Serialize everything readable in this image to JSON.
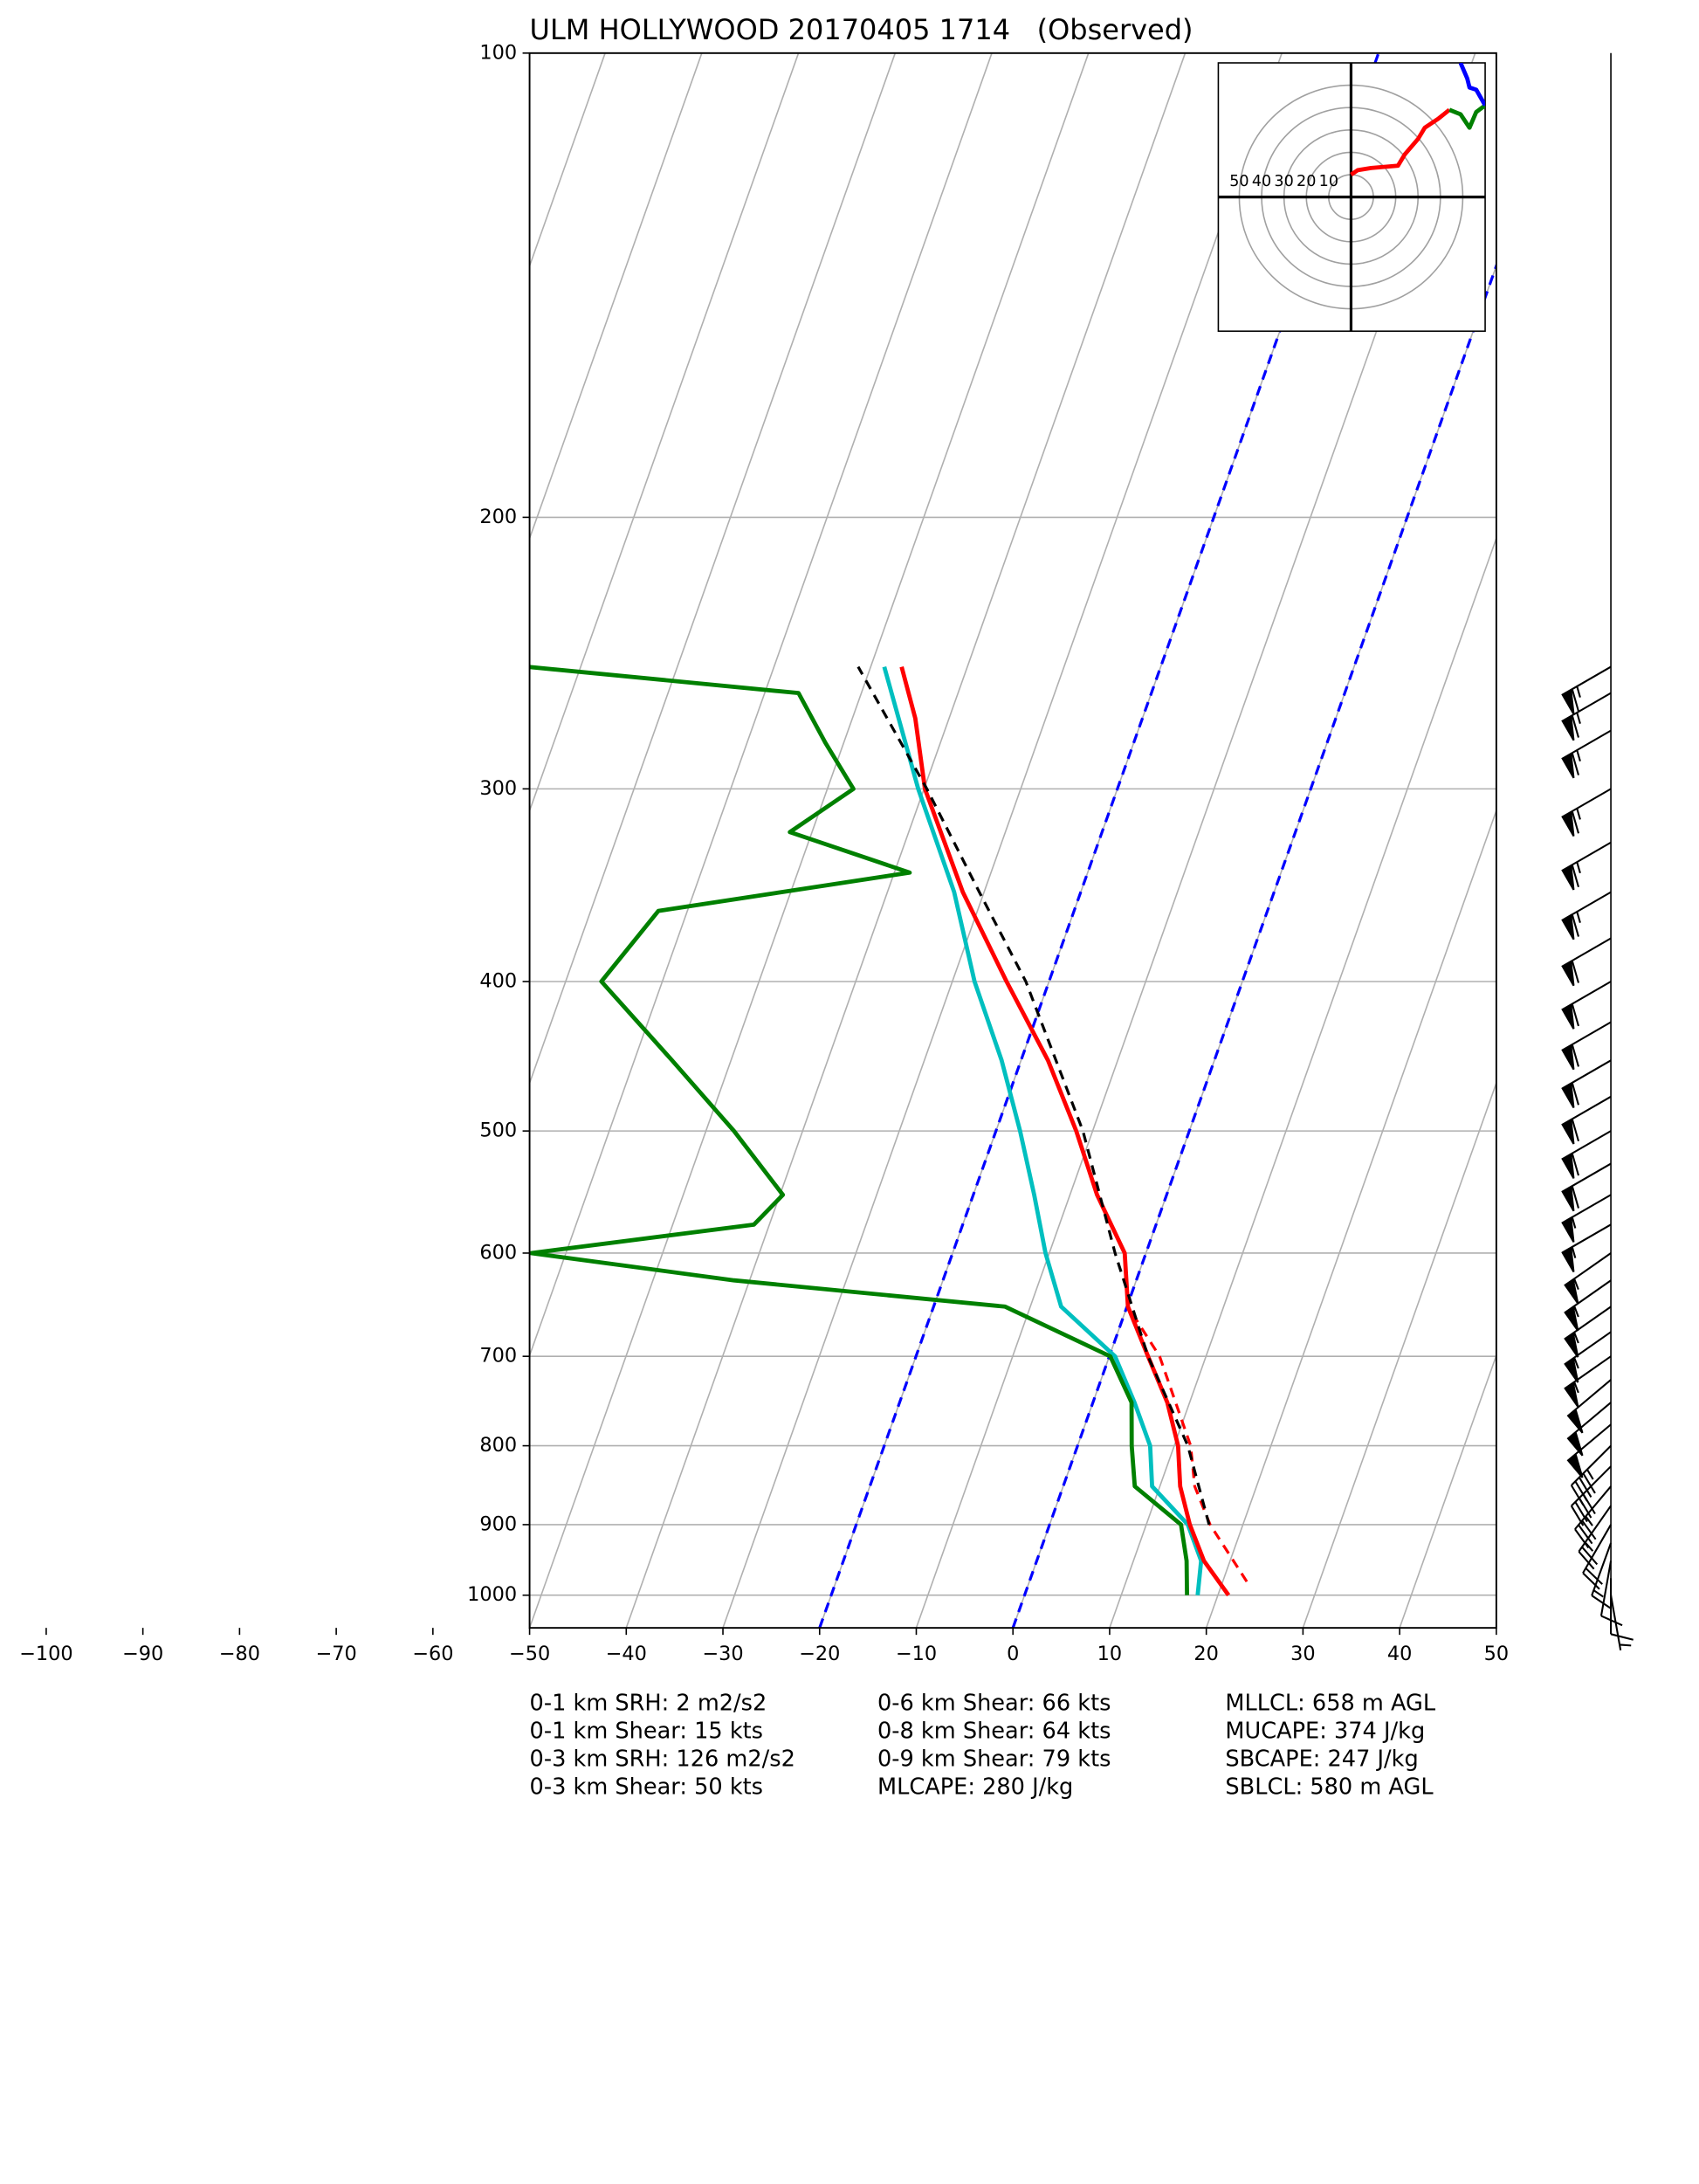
{
  "chart_data": [
    {
      "type": "skewt",
      "title": "ULM HOLLYWOOD 20170405 1714   (Observed)",
      "xlim": [
        -50,
        50
      ],
      "ylim": [
        1050,
        100
      ],
      "log_y": true,
      "grid": true,
      "xticks": [
        {
          "value": -100,
          "label": "−100"
        },
        {
          "value": -90,
          "label": "−90"
        },
        {
          "value": -80,
          "label": "−80"
        },
        {
          "value": -70,
          "label": "−70"
        },
        {
          "value": -60,
          "label": "−60"
        },
        {
          "value": -50,
          "label": "−50"
        },
        {
          "value": -40,
          "label": "−40"
        },
        {
          "value": -30,
          "label": "−30"
        },
        {
          "value": -20,
          "label": "−20"
        },
        {
          "value": -10,
          "label": "−10"
        },
        0,
        10,
        20,
        30,
        40,
        50
      ],
      "yticks": [
        100,
        200,
        300,
        400,
        500,
        600,
        700,
        800,
        900,
        1000
      ],
      "highlight_isotherms": [
        -20,
        0
      ],
      "highlight_color": "#0000ff",
      "series": [
        {
          "color": "#00bfbf",
          "dashed": false,
          "pressure": [
            1000,
            950,
            900,
            850,
            800,
            750,
            700,
            650,
            600,
            550,
            500,
            450,
            400,
            350,
            300,
            250
          ],
          "values": [
            17.9,
            17.0,
            14.3,
            9.2,
            7.5,
            4.3,
            0.6,
            -6.8,
            -10.4,
            -13.7,
            -17.5,
            -22.0,
            -27.7,
            -33.1,
            -40.6,
            -48.6
          ]
        },
        {
          "color": "#008000",
          "dashed": false,
          "pressure": [
            1000,
            950,
            900,
            850,
            800,
            750,
            700,
            650,
            625,
            600,
            575,
            550,
            500,
            450,
            400,
            360,
            340,
            320,
            300,
            280,
            260,
            250
          ],
          "values": [
            16.8,
            15.5,
            13.6,
            7.4,
            5.6,
            4.0,
            0.1,
            -12.6,
            -41.6,
            -63.6,
            -41.6,
            -39.7,
            -47.1,
            -56.1,
            -66.3,
            -63.0,
            -38.4,
            -52.3,
            -47.3,
            -51.9,
            -56.5,
            -85.5
          ]
        },
        {
          "color": "#ff0000",
          "dashed": false,
          "pressure": [
            1000,
            950,
            900,
            850,
            800,
            750,
            700,
            650,
            600,
            550,
            500,
            450,
            400,
            350,
            300,
            270,
            250
          ],
          "values": [
            21.1,
            17.3,
            14.5,
            12.1,
            10.4,
            7.7,
            4.0,
            0.1,
            -2.2,
            -7.2,
            -11.7,
            -17.2,
            -24.4,
            -32.2,
            -39.9,
            -43.5,
            -46.8
          ]
        },
        {
          "color": "#ff0000",
          "dashed": true,
          "pressure": [
            980,
            900,
            850,
            800,
            700,
            650
          ],
          "values": [
            22.5,
            16.6,
            13.6,
            11.7,
            5.2,
            0.1
          ]
        },
        {
          "color": "#000000",
          "dashed": true,
          "pressure": [
            900,
            800,
            700,
            600,
            500,
            400,
            350,
            300,
            250
          ],
          "values": [
            16.5,
            11.4,
            4.0,
            -3.2,
            -11.0,
            -22.4,
            -30.5,
            -39.7,
            -51.3
          ]
        }
      ],
      "wind_barbs": {
        "pressure": [
          1000,
          975,
          950,
          925,
          900,
          875,
          850,
          825,
          800,
          775,
          750,
          725,
          700,
          675,
          650,
          625,
          600,
          575,
          550,
          525,
          500,
          475,
          450,
          425,
          400,
          375,
          350,
          325,
          300,
          275,
          260,
          250
        ],
        "speed": [
          5,
          10,
          10,
          15,
          20,
          25,
          35,
          40,
          45,
          50,
          50,
          50,
          55,
          55,
          55,
          55,
          55,
          55,
          55,
          60,
          60,
          60,
          60,
          60,
          60,
          60,
          65,
          65,
          65,
          65,
          65,
          65
        ],
        "direction": [
          170,
          180,
          190,
          200,
          210,
          215,
          220,
          225,
          225,
          230,
          230,
          230,
          235,
          235,
          235,
          235,
          235,
          240,
          240,
          240,
          240,
          240,
          240,
          240,
          240,
          240,
          240,
          240,
          240,
          240,
          240,
          240
        ]
      },
      "annotations": [
        [
          "0-1 km SRH: 2 m2/s2",
          "0-1 km Shear: 15 kts",
          "0-3 km SRH: 126 m2/s2",
          "0-3 km Shear: 50 kts"
        ],
        [
          "0-6 km Shear: 66 kts",
          "0-8 km Shear: 64 kts",
          "0-9 km Shear: 79 kts",
          "MLCAPE: 280 J/kg"
        ],
        [
          "MLLCL: 658 m AGL",
          "MUCAPE: 374 J/kg",
          "SBCAPE: 247 J/kg",
          "SBLCL: 580 m AGL"
        ]
      ]
    },
    {
      "type": "hodograph",
      "rings": [
        10,
        20,
        30,
        40,
        50
      ],
      "series": [
        {
          "color": "#ff0000",
          "u": [
            0,
            3,
            9,
            21,
            24,
            30,
            33,
            39,
            44
          ],
          "v": [
            10,
            12,
            13,
            14,
            19,
            26,
            31,
            35,
            39
          ]
        },
        {
          "color": "#008000",
          "u": [
            44,
            49,
            53,
            56,
            60
          ],
          "v": [
            39,
            37,
            31,
            38,
            41
          ]
        },
        {
          "color": "#0000ff",
          "u": [
            60,
            56,
            53,
            52,
            49
          ],
          "v": [
            41,
            48,
            49,
            53,
            60
          ]
        }
      ]
    }
  ]
}
